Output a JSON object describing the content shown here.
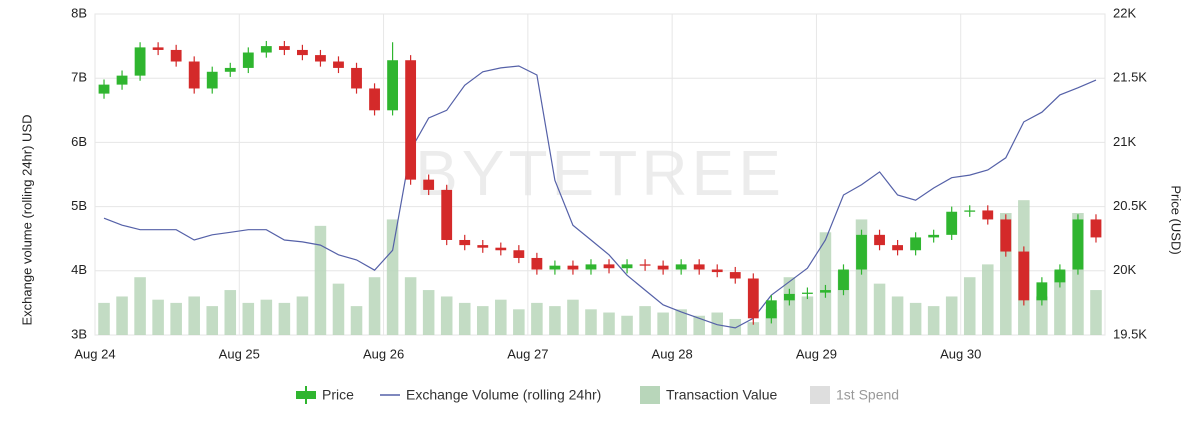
{
  "chart_data": {
    "type": "candlestick",
    "watermark": "BYTETREE",
    "y_label": "Exchange volume (rolling 24hr) USD",
    "y2_label": "Price (USD)",
    "categories": [
      "Aug 24",
      null,
      null,
      null,
      null,
      null,
      null,
      null,
      "Aug 25",
      null,
      null,
      null,
      null,
      null,
      null,
      null,
      "Aug 26",
      null,
      null,
      null,
      null,
      null,
      null,
      null,
      "Aug 27",
      null,
      null,
      null,
      null,
      null,
      null,
      null,
      "Aug 28",
      null,
      null,
      null,
      null,
      null,
      null,
      null,
      "Aug 29",
      null,
      null,
      null,
      null,
      null,
      null,
      null,
      "Aug 30",
      null,
      null,
      null,
      null,
      null,
      null,
      null
    ],
    "ylim": [
      3,
      8
    ],
    "yticks": [
      {
        "value": 3,
        "label": "3B"
      },
      {
        "value": 4,
        "label": "4B"
      },
      {
        "value": 5,
        "label": "5B"
      },
      {
        "value": 6,
        "label": "6B"
      },
      {
        "value": 7,
        "label": "7B"
      },
      {
        "value": 8,
        "label": "8B"
      }
    ],
    "y2lim": [
      19500,
      22000
    ],
    "y2ticks": [
      {
        "value": 19500,
        "label": "19.5K"
      },
      {
        "value": 20000,
        "label": "20K"
      },
      {
        "value": 20500,
        "label": "20.5K"
      },
      {
        "value": 21000,
        "label": "21K"
      },
      {
        "value": 21500,
        "label": "21.5K"
      },
      {
        "value": 22000,
        "label": "22K"
      }
    ],
    "grid": true,
    "legend": "bottom",
    "series": [
      {
        "name": "Price",
        "type": "candlestick",
        "axis": "y2",
        "color": "#2fb52f",
        "up_color": "#2fb52f",
        "down_color": "#d42a2a",
        "open": [
          21380,
          21450,
          21520,
          21740,
          21720,
          21630,
          21420,
          21550,
          21580,
          21700,
          21750,
          21720,
          21680,
          21630,
          21580,
          21420,
          21250,
          21640,
          20710,
          20630,
          20240,
          20200,
          20180,
          20160,
          20100,
          20010,
          20040,
          20010,
          20050,
          20020,
          20050,
          20040,
          20010,
          20050,
          20010,
          19990,
          19940,
          19630,
          19770,
          19820,
          19830,
          19850,
          20010,
          20280,
          20200,
          20160,
          20260,
          20280,
          20460,
          20470,
          20400,
          20150,
          19770,
          19910,
          20010,
          20400
        ],
        "high": [
          21490,
          21560,
          21780,
          21780,
          21760,
          21670,
          21590,
          21620,
          21740,
          21790,
          21790,
          21760,
          21720,
          21670,
          21620,
          21460,
          21780,
          21680,
          20750,
          20670,
          20280,
          20240,
          20220,
          20200,
          20140,
          20080,
          20080,
          20090,
          20090,
          20090,
          20090,
          20080,
          20090,
          20090,
          20050,
          20030,
          19980,
          19810,
          19860,
          19870,
          19890,
          20050,
          20320,
          20320,
          20240,
          20300,
          20320,
          20500,
          20510,
          20510,
          20440,
          20190,
          19950,
          20050,
          20440,
          20440
        ],
        "low": [
          21340,
          21410,
          21480,
          21680,
          21590,
          21380,
          21380,
          21510,
          21540,
          21660,
          21680,
          21640,
          21590,
          21540,
          21380,
          21210,
          21210,
          20670,
          20590,
          20200,
          20160,
          20140,
          20120,
          20060,
          19970,
          19970,
          19970,
          19970,
          19980,
          19980,
          20000,
          19970,
          19970,
          19970,
          19950,
          19900,
          19580,
          19590,
          19730,
          19780,
          19790,
          19810,
          19970,
          20160,
          20120,
          20120,
          20220,
          20240,
          20420,
          20360,
          20110,
          19730,
          19730,
          19870,
          19970,
          20220
        ],
        "close": [
          21450,
          21520,
          21740,
          21720,
          21630,
          21420,
          21550,
          21580,
          21700,
          21750,
          21720,
          21680,
          21630,
          21580,
          21420,
          21250,
          21640,
          20710,
          20630,
          20240,
          20200,
          20180,
          20160,
          20100,
          20010,
          20040,
          20010,
          20050,
          20020,
          20050,
          20040,
          20010,
          20050,
          20010,
          19990,
          19940,
          19630,
          19770,
          19820,
          19830,
          19850,
          20010,
          20280,
          20200,
          20160,
          20260,
          20280,
          20460,
          20470,
          20400,
          20150,
          19770,
          19910,
          20010,
          20400,
          20260
        ]
      },
      {
        "name": "Exchange Volume (rolling 24hr)",
        "type": "line",
        "axis": "y",
        "color": "#5561a8",
        "values": [
          4.82,
          4.71,
          4.64,
          4.64,
          4.64,
          4.48,
          4.56,
          4.6,
          4.64,
          4.64,
          4.48,
          4.45,
          4.4,
          4.25,
          4.17,
          4.01,
          4.32,
          5.88,
          6.38,
          6.5,
          6.89,
          7.1,
          7.16,
          7.19,
          7.05,
          5.41,
          4.71,
          4.48,
          4.25,
          3.93,
          3.7,
          3.47,
          3.36,
          3.26,
          3.16,
          3.11,
          3.26,
          3.62,
          3.83,
          4.04,
          4.48,
          5.18,
          5.34,
          5.54,
          5.18,
          5.1,
          5.29,
          5.45,
          5.49,
          5.57,
          5.76,
          6.32,
          6.47,
          6.74,
          6.85,
          6.97
        ]
      },
      {
        "name": "Transaction Value",
        "type": "bar",
        "axis": "y",
        "color": "#b8d6ba",
        "values": [
          3.5,
          3.6,
          3.9,
          3.55,
          3.5,
          3.6,
          3.45,
          3.7,
          3.5,
          3.55,
          3.5,
          3.6,
          4.7,
          3.8,
          3.45,
          3.9,
          4.8,
          3.9,
          3.7,
          3.6,
          3.5,
          3.45,
          3.55,
          3.4,
          3.5,
          3.45,
          3.55,
          3.4,
          3.35,
          3.3,
          3.45,
          3.35,
          3.4,
          3.3,
          3.35,
          3.25,
          3.2,
          3.4,
          3.9,
          3.6,
          4.6,
          4.0,
          4.8,
          3.8,
          3.6,
          3.5,
          3.45,
          3.6,
          3.9,
          4.1,
          4.9,
          5.1,
          3.6,
          4.0,
          4.9,
          3.7
        ]
      },
      {
        "name": "1st Spend",
        "type": "bar",
        "axis": "y",
        "color": "#dedede"
      }
    ]
  }
}
